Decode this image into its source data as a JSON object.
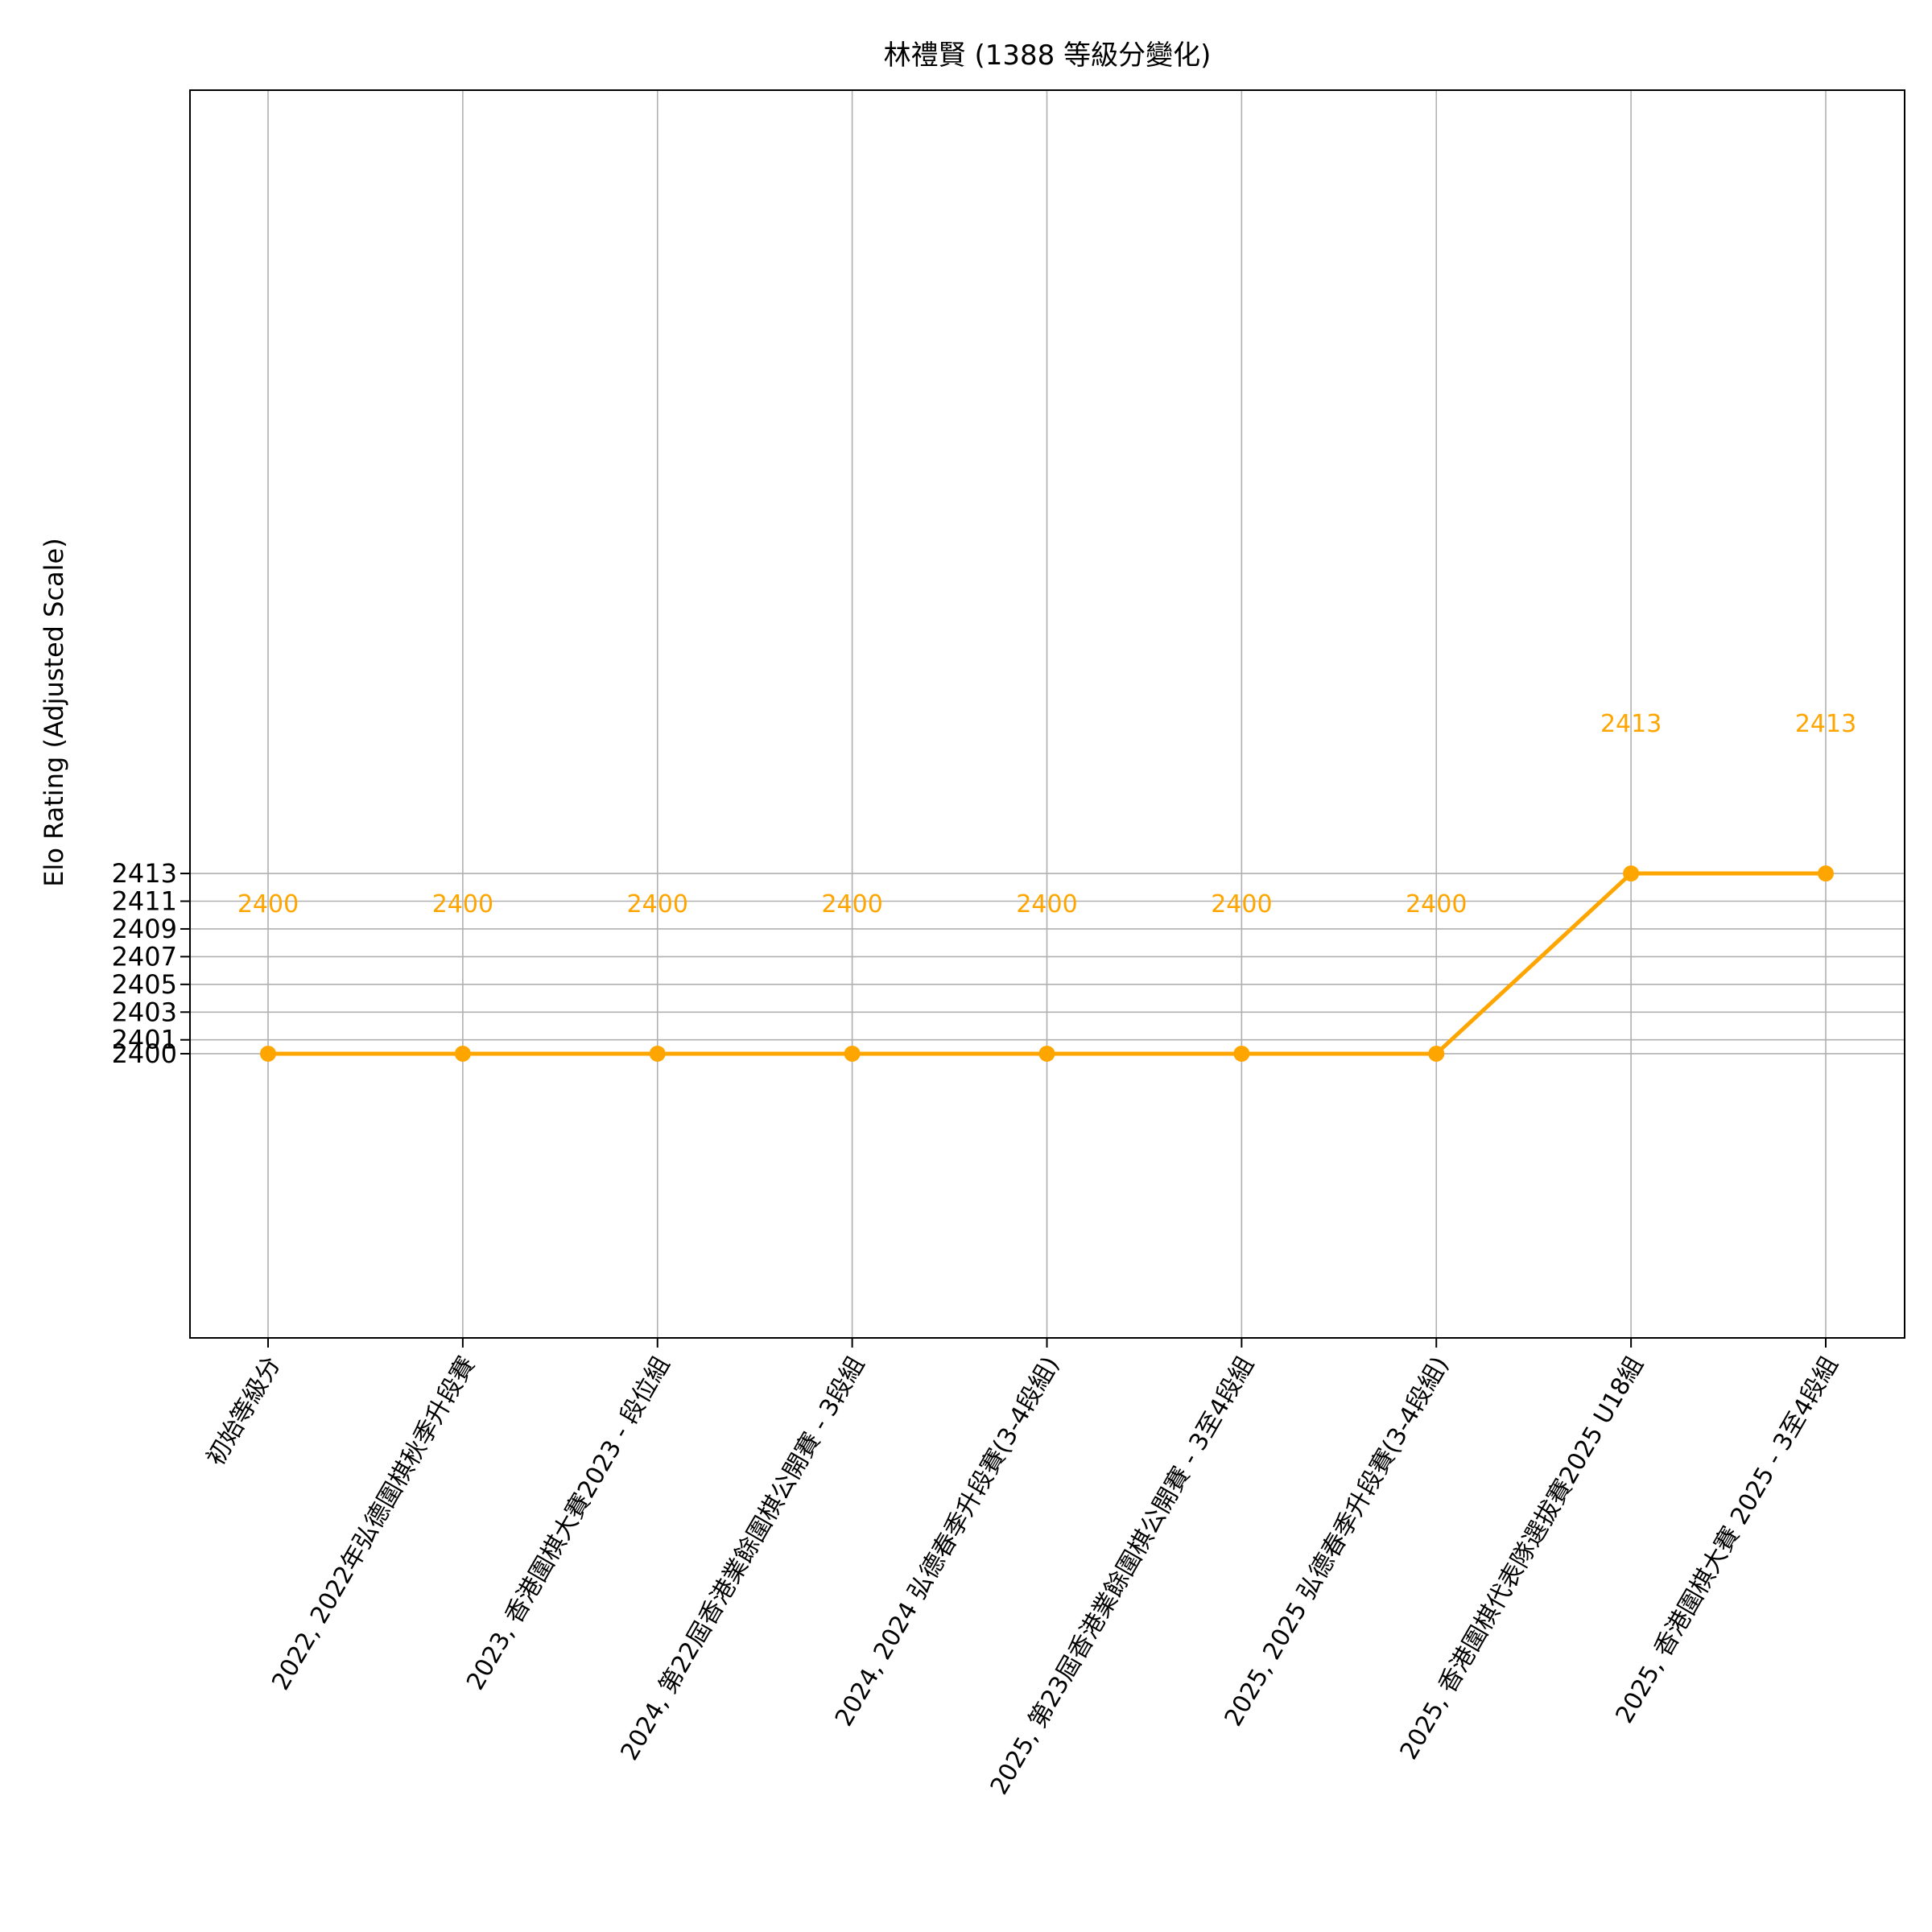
{
  "chart_data": {
    "type": "line",
    "title": "林禮賢 (1388 等級分變化)",
    "ylabel": "Elo Rating (Adjusted Scale)",
    "xlabel": "",
    "categories": [
      "初始等級分",
      "2022, 2022年弘德圍棋秋季升段賽",
      "2023, 香港圍棋大賽2023 - 段位組",
      "2024, 第22屆香港業餘圍棋公開賽 - 3段組",
      "2024, 2024 弘德春季升段賽(3-4段組)",
      "2025, 第23屆香港業餘圍棋公開賽 - 3至4段組",
      "2025, 2025 弘德春季升段賽(3-4段組)",
      "2025, 香港圍棋代表隊選拔賽2025 U18組",
      "2025, 香港圍棋大賽 2025 - 3至4段組"
    ],
    "series": [
      {
        "values": [
          2400,
          2400,
          2400,
          2400,
          2400,
          2400,
          2400,
          2413,
          2413
        ]
      }
    ],
    "data_labels": [
      "2400",
      "2400",
      "2400",
      "2400",
      "2400",
      "2400",
      "2400",
      "2413",
      "2413"
    ],
    "yticks": [
      2400,
      2401,
      2403,
      2405,
      2407,
      2409,
      2411,
      2413
    ],
    "ylim": [
      2379.5,
      2469.5
    ],
    "grid": true,
    "colors": {
      "line": "#ffa500",
      "label": "#ffa500",
      "grid": "#b0b0b0",
      "axis": "#000000",
      "text": "#000000"
    }
  }
}
